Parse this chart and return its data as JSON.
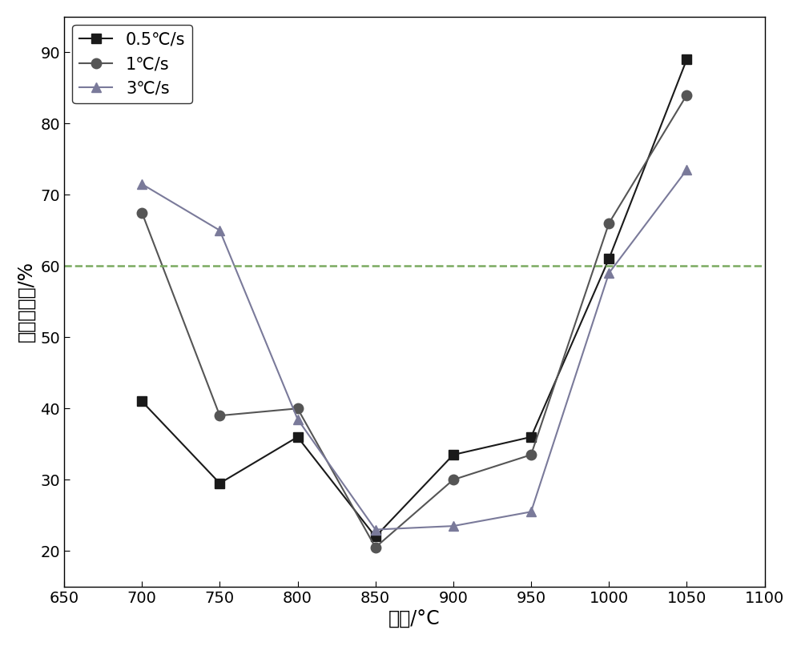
{
  "series": [
    {
      "label": "0.5°C/s",
      "x": [
        700,
        750,
        800,
        850,
        900,
        950,
        1000,
        1050
      ],
      "y": [
        41,
        29.5,
        36,
        22,
        33.5,
        36,
        61,
        89
      ],
      "color": "#1a1a1a",
      "marker": "s",
      "markersize": 8,
      "linewidth": 1.5
    },
    {
      "label": "1°C/s",
      "x": [
        700,
        750,
        800,
        850,
        900,
        950,
        1000,
        1050
      ],
      "y": [
        67.5,
        39,
        40,
        20.5,
        30,
        33.5,
        66,
        84
      ],
      "color": "#555555",
      "marker": "o",
      "markersize": 9,
      "linewidth": 1.5
    },
    {
      "label": "3°C/s",
      "x": [
        700,
        750,
        800,
        850,
        900,
        950,
        1000,
        1050
      ],
      "y": [
        71.5,
        65,
        38.5,
        23,
        23.5,
        25.5,
        59,
        73.5
      ],
      "color": "#7a7a9a",
      "marker": "^",
      "markersize": 9,
      "linewidth": 1.5
    }
  ],
  "hline_y": 60,
  "hline_color": "#7aaa60",
  "hline_style": "--",
  "hline_linewidth": 1.8,
  "xlim": [
    650,
    1100
  ],
  "ylim": [
    15,
    95
  ],
  "xticks": [
    650,
    700,
    750,
    800,
    850,
    900,
    950,
    1000,
    1050,
    1100
  ],
  "yticks": [
    20,
    30,
    40,
    50,
    60,
    70,
    80,
    90
  ],
  "xlabel": "温度/°C",
  "ylabel": "断面收缩率/%",
  "xlabel_fontsize": 17,
  "ylabel_fontsize": 17,
  "tick_fontsize": 14,
  "legend_fontsize": 15,
  "background_color": "#ffffff",
  "figsize": [
    10.0,
    8.07
  ],
  "dpi": 100,
  "legend_loc": "upper left",
  "legend_labels": [
    "0.5℃/s",
    "1℃/s",
    "3℃/s"
  ]
}
